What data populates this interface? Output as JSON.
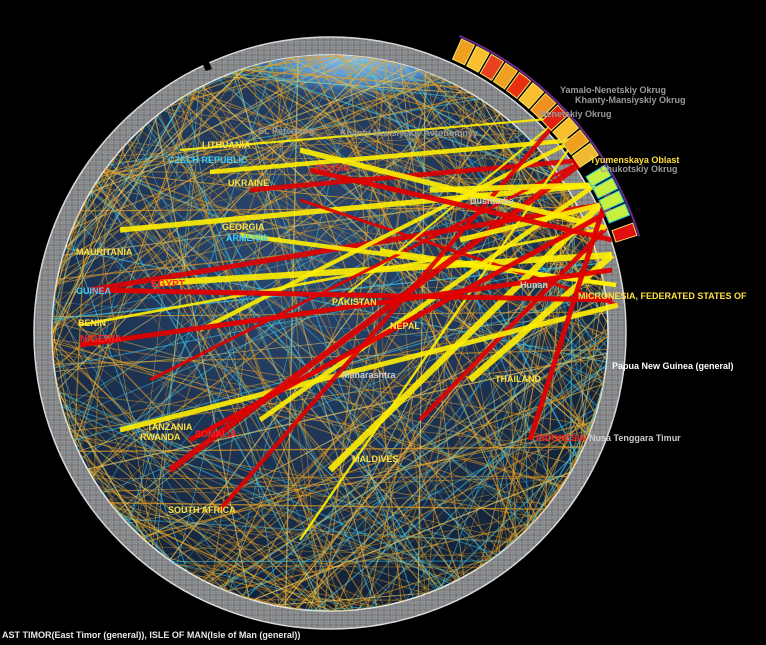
{
  "footer_text": "AST TIMOR(East Timor (general)), ISLE OF MAN(Isle of Man (general))",
  "colors": {
    "background": "#000000",
    "highlight_link": "#ffee00",
    "strong_link": "#e00000",
    "thin_link_orange": "#e8a020",
    "thin_link_cyan": "#40c8e8",
    "ring": "#c8c8c8",
    "country_red": "#ff2020",
    "country_cyan": "#3fd0ff",
    "country_yellow": "#ffe040"
  },
  "labels": [
    {
      "text": "Yamalo-Nenetskiy Okrug",
      "kind": "gray"
    },
    {
      "text": "Khanty-Mansiyskiy Okrug",
      "kind": "gray"
    },
    {
      "text": "Nenetskiy Okrug",
      "kind": "gray"
    },
    {
      "text": "Tyumenskaya Oblast",
      "kind": "yellow"
    },
    {
      "text": "Chukotskiy Okrug",
      "kind": "gray"
    },
    {
      "text": "Khanty-Mansiyskiy Avtonomnyy",
      "kind": "gray"
    },
    {
      "text": "St. Peterburg",
      "kind": "gray"
    },
    {
      "text": "LITHUANIA",
      "kind": "yellow"
    },
    {
      "text": "CZECH REPUBLIC",
      "kind": "cyan"
    },
    {
      "text": "RUSSIA",
      "kind": "red"
    },
    {
      "text": "UKRAINE",
      "kind": "yellow"
    },
    {
      "text": "GEORGIA",
      "kind": "yellow"
    },
    {
      "text": "ARMENIA",
      "kind": "cyan"
    },
    {
      "text": "MAURITANIA",
      "kind": "yellow"
    },
    {
      "text": "EGYPT",
      "kind": "red"
    },
    {
      "text": "GUINEA",
      "kind": "cyan"
    },
    {
      "text": "BENIN",
      "kind": "yellow"
    },
    {
      "text": "NIGERIA",
      "kind": "red"
    },
    {
      "text": "PAKISTAN",
      "kind": "yellow"
    },
    {
      "text": "NEPAL",
      "kind": "yellow"
    },
    {
      "text": "Dushanbe",
      "kind": "gray"
    },
    {
      "text": "Hunan",
      "kind": "gray"
    },
    {
      "text": "Maharashtra",
      "kind": "gray"
    },
    {
      "text": "THAILAND",
      "kind": "yellow"
    },
    {
      "text": "TANZANIA",
      "kind": "yellow"
    },
    {
      "text": "RWANDA",
      "kind": "yellow"
    },
    {
      "text": "SOMALIA",
      "kind": "red"
    },
    {
      "text": "MALDIVES",
      "kind": "yellow"
    },
    {
      "text": "INDONESIA",
      "kind": "red"
    },
    {
      "text": "Nusa Tenggara Timur",
      "kind": "gray"
    },
    {
      "text": "SOUTH AFRICA",
      "kind": "yellow"
    },
    {
      "text": "Papua New Guinea (general)",
      "kind": "white"
    },
    {
      "text": "MICRONESIA, FEDERATED STATES OF",
      "kind": "yellow"
    }
  ],
  "highlight_country": "MICRONESIA, FEDERATED STATES OF"
}
